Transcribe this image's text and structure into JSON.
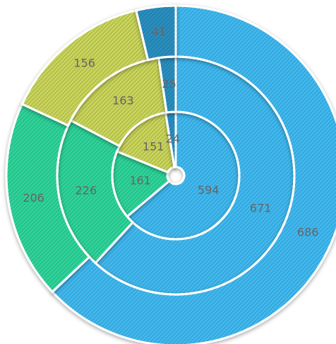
{
  "chart_data": {
    "type": "pie",
    "variant": "nested-donut",
    "title": "",
    "legend": "none",
    "colors": [
      "#3fb9f0",
      "#2fd49a",
      "#c9d45a",
      "#2a8fbf"
    ],
    "series": [
      {
        "ring": "inner",
        "values": [
          594,
          161,
          151,
          24
        ]
      },
      {
        "ring": "middle",
        "values": [
          671,
          226,
          163,
          25
        ]
      },
      {
        "ring": "outer",
        "values": [
          686,
          206,
          156,
          41
        ]
      }
    ]
  }
}
